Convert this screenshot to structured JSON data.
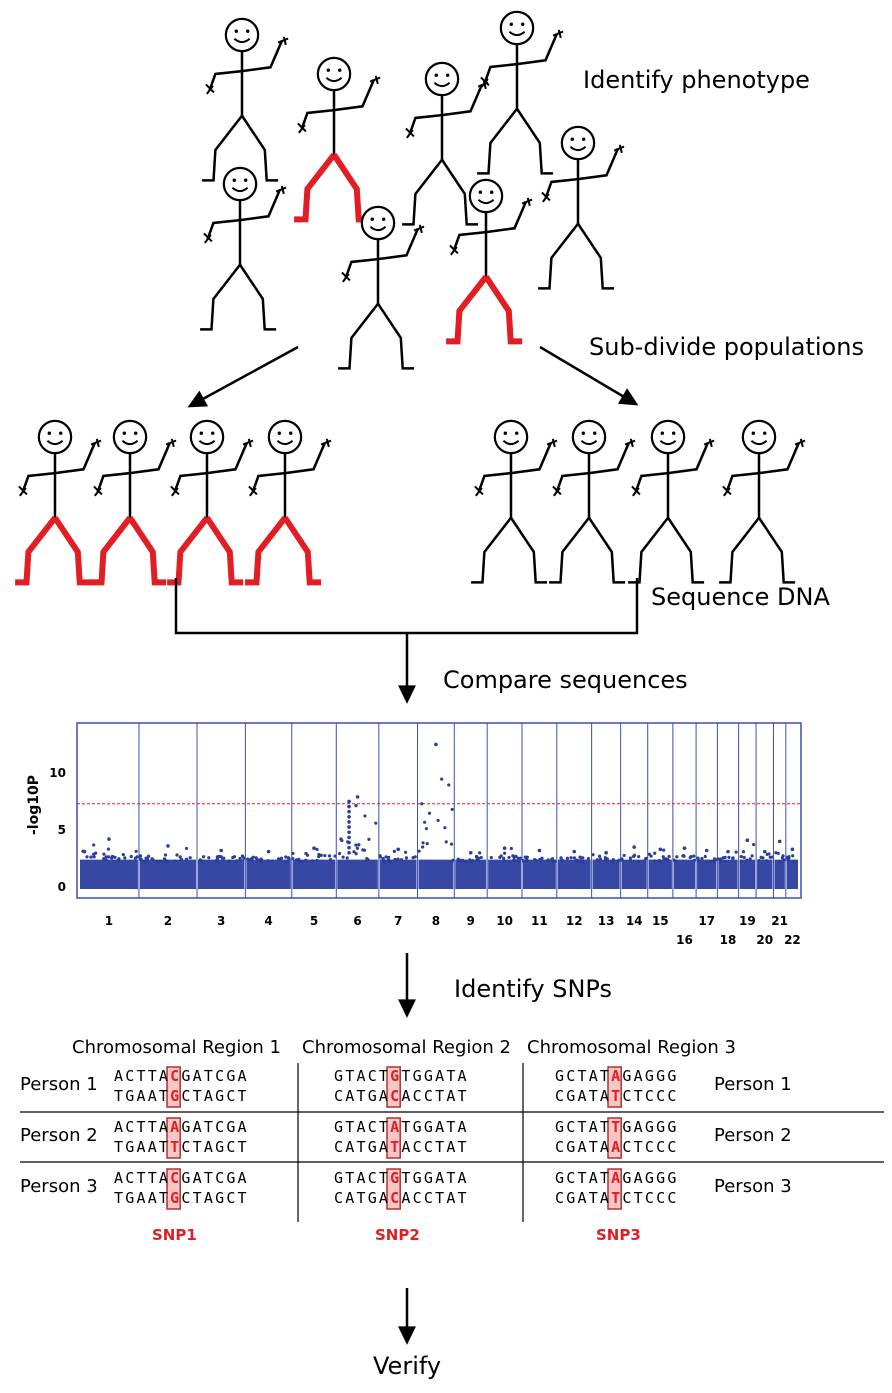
{
  "steps": {
    "identify_phenotype": "Identify phenotype",
    "subdivide": "Sub-divide populations",
    "sequence": "Sequence DNA",
    "compare": "Compare sequences",
    "identify_snps": "Identify SNPs",
    "verify": "Verify"
  },
  "colors": {
    "trait": "#e31d24",
    "figure": "#000000",
    "manhattan_points": "#2b3e9e",
    "threshold": "#e31d24",
    "highlight": "#f5c6c6"
  },
  "chart_data": {
    "type": "scatter",
    "ylabel": "-log10P",
    "yticks": [
      "0",
      "5",
      "10"
    ],
    "ylim": [
      0,
      13.5
    ],
    "threshold": 7.3,
    "grid": false,
    "chromosomes": [
      {
        "label": "1",
        "size": 1.55,
        "peak": 4.2
      },
      {
        "label": "2",
        "size": 1.5,
        "peak": 3.6
      },
      {
        "label": "3",
        "size": 1.25,
        "peak": 3.2
      },
      {
        "label": "4",
        "size": 1.2,
        "peak": 3.1
      },
      {
        "label": "5",
        "size": 1.15,
        "peak": 3.4
      },
      {
        "label": "6",
        "size": 1.1,
        "peak": 7.9
      },
      {
        "label": "7",
        "size": 1.0,
        "peak": 3.3
      },
      {
        "label": "8",
        "size": 0.95,
        "peak": 12.5
      },
      {
        "label": "9",
        "size": 0.85,
        "peak": 3.0
      },
      {
        "label": "10",
        "size": 0.9,
        "peak": 3.4
      },
      {
        "label": "11",
        "size": 0.9,
        "peak": 3.2
      },
      {
        "label": "12",
        "size": 0.9,
        "peak": 3.1
      },
      {
        "label": "13",
        "size": 0.75,
        "peak": 3.0
      },
      {
        "label": "14",
        "size": 0.7,
        "peak": 3.5
      },
      {
        "label": "15",
        "size": 0.65,
        "peak": 3.3
      },
      {
        "label": "16",
        "size": 0.6,
        "peak": 3.4
      },
      {
        "label": "17",
        "size": 0.55,
        "peak": 3.2
      },
      {
        "label": "18",
        "size": 0.55,
        "peak": 3.1
      },
      {
        "label": "19",
        "size": 0.45,
        "peak": 4.1
      },
      {
        "label": "20",
        "size": 0.45,
        "peak": 3.1
      },
      {
        "label": "21",
        "size": 0.32,
        "peak": 4.0
      },
      {
        "label": "22",
        "size": 0.34,
        "peak": 3.3
      }
    ]
  },
  "snp_table": {
    "regions": [
      "Chromosomal Region 1",
      "Chromosomal Region 2",
      "Chromosomal Region 3"
    ],
    "persons": [
      "Person 1",
      "Person 2",
      "Person 3"
    ],
    "snp_labels": [
      "SNP1",
      "SNP2",
      "SNP3"
    ],
    "rows": [
      [
        {
          "top": [
            "ACTTA",
            "C",
            "GATCGA"
          ],
          "bottom": [
            "TGAAT",
            "G",
            "CTAGCT"
          ]
        },
        {
          "top": [
            "GTACT",
            "G",
            "TGGATA"
          ],
          "bottom": [
            "CATGA",
            "C",
            "ACCTAT"
          ]
        },
        {
          "top": [
            "GCTAT",
            "A",
            "GAGGG"
          ],
          "bottom": [
            "CGATA",
            "T",
            "CTCCC"
          ]
        }
      ],
      [
        {
          "top": [
            "ACTTA",
            "A",
            "GATCGA"
          ],
          "bottom": [
            "TGAAT",
            "T",
            "CTAGCT"
          ]
        },
        {
          "top": [
            "GTACT",
            "A",
            "TGGATA"
          ],
          "bottom": [
            "CATGA",
            "T",
            "ACCTAT"
          ]
        },
        {
          "top": [
            "GCTAT",
            "T",
            "GAGGG"
          ],
          "bottom": [
            "CGATA",
            "A",
            "CTCCC"
          ]
        }
      ],
      [
        {
          "top": [
            "ACTTA",
            "C",
            "GATCGA"
          ],
          "bottom": [
            "TGAAT",
            "G",
            "CTAGCT"
          ]
        },
        {
          "top": [
            "GTACT",
            "G",
            "TGGATA"
          ],
          "bottom": [
            "CATGA",
            "C",
            "ACCTAT"
          ]
        },
        {
          "top": [
            "GCTAT",
            "A",
            "GAGGG"
          ],
          "bottom": [
            "CGATA",
            "T",
            "CTCCC"
          ]
        }
      ]
    ]
  }
}
